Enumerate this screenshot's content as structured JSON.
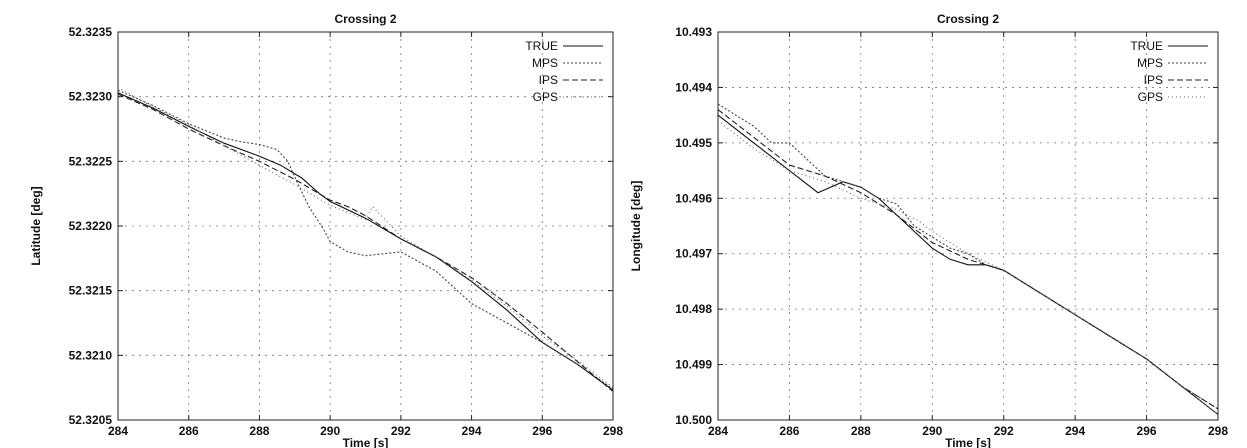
{
  "chart_data": [
    {
      "type": "line",
      "title": "Crossing 2",
      "xlabel": "Time [s]",
      "ylabel": "Latitude [deg]",
      "xlim": [
        284,
        298
      ],
      "ylim": [
        52.3205,
        52.3235
      ],
      "y_inverted": false,
      "xticks": [
        284,
        286,
        288,
        290,
        292,
        294,
        296,
        298
      ],
      "xtick_labels": [
        "284",
        "286",
        "288",
        "290",
        "292",
        "294",
        "296",
        "298"
      ],
      "yticks": [
        52.3205,
        52.321,
        52.3215,
        52.322,
        52.3225,
        52.323,
        52.3235
      ],
      "ytick_labels": [
        "52.3205",
        "52.3210",
        "52.3215",
        "52.3220",
        "52.3225",
        "52.3230",
        "52.3235"
      ],
      "grid": true,
      "legend_position": "top-right",
      "series": [
        {
          "name": "TRUE",
          "color": "#111111",
          "dash": "none",
          "x": [
            284,
            285,
            286,
            287,
            288,
            288.6,
            289.2,
            289.7,
            290,
            291,
            292,
            293,
            294,
            295,
            296,
            297,
            298
          ],
          "y": [
            52.32303,
            52.32291,
            52.32277,
            52.32264,
            52.32254,
            52.32247,
            52.32237,
            52.32225,
            52.32219,
            52.32206,
            52.3219,
            52.32176,
            52.32157,
            52.32135,
            52.3211,
            52.32093,
            52.32073
          ]
        },
        {
          "name": "MPS",
          "color": "#444444",
          "dash": "2,2",
          "x": [
            284,
            285,
            286,
            287,
            287.5,
            288,
            288.5,
            288.8,
            289.1,
            289.4,
            289.8,
            290,
            290.5,
            291,
            292,
            293,
            294,
            295,
            296,
            297,
            298
          ],
          "y": [
            52.32305,
            52.32293,
            52.32279,
            52.32268,
            52.32265,
            52.32263,
            52.32259,
            52.3225,
            52.32232,
            52.32215,
            52.32198,
            52.32188,
            52.3218,
            52.32177,
            52.3218,
            52.32165,
            52.3214,
            52.32125,
            52.3211,
            52.32093,
            52.32074
          ]
        },
        {
          "name": "IPS",
          "color": "#222222",
          "dash": "6,3",
          "x": [
            284,
            285,
            286,
            287,
            288,
            289,
            290,
            290.5,
            291,
            292,
            293,
            294,
            294.5,
            295,
            296,
            297,
            298
          ],
          "y": [
            52.32302,
            52.3229,
            52.32275,
            52.32262,
            52.3225,
            52.32236,
            52.3222,
            52.32215,
            52.32208,
            52.3219,
            52.32176,
            52.3216,
            52.3215,
            52.3214,
            52.32118,
            52.32095,
            52.32072
          ]
        },
        {
          "name": "GPS",
          "color": "#666666",
          "dash": "1,3",
          "x": [
            284,
            285,
            286,
            287,
            288,
            289,
            290,
            291,
            291.2,
            292,
            293,
            294,
            295,
            296,
            297,
            298
          ],
          "y": [
            52.32307,
            52.32292,
            52.32278,
            52.32262,
            52.32247,
            52.32232,
            52.32216,
            52.32205,
            52.32215,
            52.32192,
            52.32176,
            52.32158,
            52.32138,
            52.32115,
            52.32096,
            52.32075
          ]
        }
      ]
    },
    {
      "type": "line",
      "title": "Crossing 2",
      "xlabel": "Time [s]",
      "ylabel": "Longitude [deg]",
      "xlim": [
        284,
        298
      ],
      "ylim": [
        10.493,
        10.5
      ],
      "y_inverted": true,
      "xticks": [
        284,
        286,
        288,
        290,
        292,
        294,
        296,
        298
      ],
      "xtick_labels": [
        "284",
        "286",
        "288",
        "290",
        "292",
        "294",
        "296",
        "298"
      ],
      "yticks": [
        10.493,
        10.494,
        10.495,
        10.496,
        10.497,
        10.498,
        10.499,
        10.5
      ],
      "ytick_labels": [
        "10.493",
        "10.494",
        "10.495",
        "10.496",
        "10.497",
        "10.498",
        "10.499",
        "10.500"
      ],
      "grid": true,
      "legend_position": "top-right",
      "series": [
        {
          "name": "TRUE",
          "color": "#111111",
          "dash": "none",
          "x": [
            284,
            285,
            286,
            286.8,
            287.5,
            288,
            288.5,
            289,
            289.5,
            290,
            290.5,
            291,
            291.5,
            292,
            293,
            294,
            295,
            296,
            297,
            298
          ],
          "y": [
            10.4945,
            10.495,
            10.4955,
            10.4959,
            10.4957,
            10.4958,
            10.496,
            10.4963,
            10.4966,
            10.4969,
            10.4971,
            10.4972,
            10.4972,
            10.4973,
            10.4977,
            10.4981,
            10.4985,
            10.4989,
            10.4994,
            10.4999
          ]
        },
        {
          "name": "MPS",
          "color": "#444444",
          "dash": "2,2",
          "x": [
            284,
            285,
            285.5,
            286,
            287,
            288,
            288.5,
            289,
            289.5,
            290,
            290.5,
            291,
            291.5,
            292,
            293,
            294,
            295,
            296,
            297,
            298
          ],
          "y": [
            10.4943,
            10.4947,
            10.495,
            10.495,
            10.4956,
            10.4958,
            10.496,
            10.4961,
            10.4965,
            10.4967,
            10.4969,
            10.497,
            10.4972,
            10.4973,
            10.4977,
            10.4981,
            10.4985,
            10.4989,
            10.4994,
            10.4998
          ]
        },
        {
          "name": "IPS",
          "color": "#222222",
          "dash": "6,3",
          "x": [
            284,
            285,
            286,
            287,
            288,
            289,
            290,
            291,
            292,
            293,
            294,
            295,
            296,
            297,
            298
          ],
          "y": [
            10.4944,
            10.4949,
            10.4954,
            10.4956,
            10.4959,
            10.4963,
            10.4968,
            10.4971,
            10.4973,
            10.4977,
            10.4981,
            10.4985,
            10.4989,
            10.4994,
            10.4998
          ]
        },
        {
          "name": "GPS",
          "color": "#666666",
          "dash": "1,3",
          "x": [
            284,
            285,
            286,
            287,
            288,
            289,
            289.6,
            290,
            291,
            292,
            293,
            294,
            295,
            296,
            297,
            298
          ],
          "y": [
            10.4946,
            10.4951,
            10.4955,
            10.4957,
            10.496,
            10.4962,
            10.4964,
            10.4966,
            10.497,
            10.4973,
            10.4977,
            10.4981,
            10.4985,
            10.4989,
            10.4994,
            10.4999
          ]
        }
      ]
    }
  ]
}
